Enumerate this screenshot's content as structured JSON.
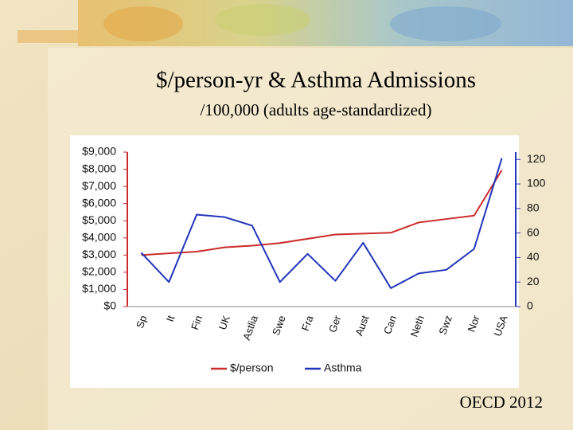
{
  "chart_data": {
    "type": "line",
    "title": "$/person-yr & Asthma Admissions",
    "subtitle": "/100,000 (adults age-standardized)",
    "source": "OECD 2012",
    "categories": [
      "Sp",
      "It",
      "Fin",
      "UK",
      "Astlia",
      "Swe",
      "Fra",
      "Ger",
      "Aust",
      "Can",
      "Neth",
      "Swz",
      "Nor",
      "USA"
    ],
    "series": [
      {
        "name": "$/person",
        "color": "#cc2b2b",
        "values": [
          3000,
          3100,
          3200,
          3450,
          3550,
          3700,
          3950,
          4200,
          4250,
          4300,
          4900,
          5100,
          5300,
          7950
        ]
      },
      {
        "name": "Asthma",
        "color": "#2233bb",
        "axis": "y2",
        "values": [
          44,
          20,
          75,
          73,
          66,
          20,
          43,
          21,
          52,
          15,
          27,
          30,
          47,
          121
        ]
      }
    ],
    "ylim": [
      0,
      9000
    ],
    "yticks": [
      {
        "value": 0,
        "label": "$0"
      },
      {
        "value": 1000,
        "label": "$1,000"
      },
      {
        "value": 2000,
        "label": "$2,000"
      },
      {
        "value": 3000,
        "label": "$3,000"
      },
      {
        "value": 4000,
        "label": "$4,000"
      },
      {
        "value": 5000,
        "label": "$5,000"
      },
      {
        "value": 6000,
        "label": "$6,000"
      },
      {
        "value": 7000,
        "label": "$7,000"
      },
      {
        "value": 8000,
        "label": "$8,000"
      },
      {
        "value": 9000,
        "label": "$9,000"
      }
    ],
    "y2lim": [
      0,
      126
    ],
    "y2ticks": [
      0,
      20,
      40,
      60,
      80,
      100,
      120
    ],
    "grid": false,
    "legend": "bottom"
  }
}
